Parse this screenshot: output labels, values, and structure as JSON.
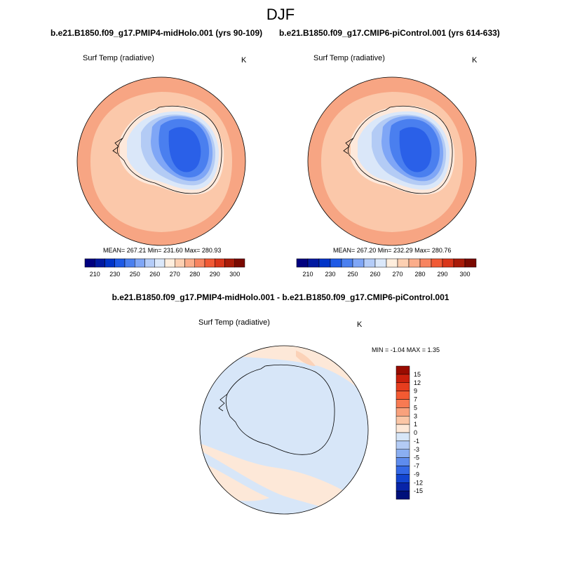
{
  "season": "DJF",
  "panels": [
    {
      "case_title": "b.e21.B1850.f09_g17.PMIP4-midHolo.001 (yrs 90-109)",
      "variable": "Surf Temp (radiative)",
      "units": "K",
      "stats": "MEAN= 267.21  Min= 231.60  Max= 280.93"
    },
    {
      "case_title": "b.e21.B1850.f09_g17.CMIP6-piControl.001 (yrs 614-633)",
      "variable": "Surf Temp (radiative)",
      "units": "K",
      "stats": "MEAN= 267.20  Min= 232.29  Max= 280.76"
    }
  ],
  "difference": {
    "title": "b.e21.B1850.f09_g17.PMIP4-midHolo.001 - b.e21.B1850.f09_g17.CMIP6-piControl.001",
    "variable": "Surf Temp (radiative)",
    "units": "K",
    "stats": "MIN =  -1.04 MAX =   1.35"
  },
  "colorbar_abs": {
    "tick_labels": [
      "210",
      "230",
      "250",
      "260",
      "270",
      "280",
      "290",
      "300"
    ],
    "colors": [
      "#00007f",
      "#0019a0",
      "#0034c8",
      "#1e5ae6",
      "#4a7fef",
      "#7fa6f6",
      "#b4ccf8",
      "#dbe8fa",
      "#ffeedd",
      "#fdd0b2",
      "#fbad8a",
      "#f78460",
      "#f15a35",
      "#d9361a",
      "#a81b08",
      "#7a0a00"
    ]
  },
  "colorbar_diff": {
    "tick_labels": [
      "15",
      "12",
      "9",
      "7",
      "5",
      "3",
      "1",
      "0",
      "-1",
      "-3",
      "-5",
      "-7",
      "-9",
      "-12",
      "-15"
    ],
    "colors": [
      "#990b00",
      "#c91f0c",
      "#e63d1e",
      "#f45a32",
      "#f87a52",
      "#f9a17c",
      "#fbc6a6",
      "#fde8d8",
      "#d7e6f8",
      "#b3cbf5",
      "#8aaef1",
      "#5e8cee",
      "#3468e6",
      "#1244d0",
      "#0824a8",
      "#00107a"
    ]
  },
  "map_colors": {
    "ocean_warm": "#fbc8aa",
    "ocean_warmer": "#f7a583",
    "coast_pale": "#fde9dc",
    "ice_edge": "#dae7f9",
    "ice_light": "#b3cbf5",
    "ice_mid": "#7fa6f6",
    "ice_deep": "#4a7fef",
    "ice_core": "#2a60e8",
    "diff_pos": "#fde8d8",
    "diff_pos2": "#fbd2b8",
    "diff_neg": "#d7e6f8"
  }
}
